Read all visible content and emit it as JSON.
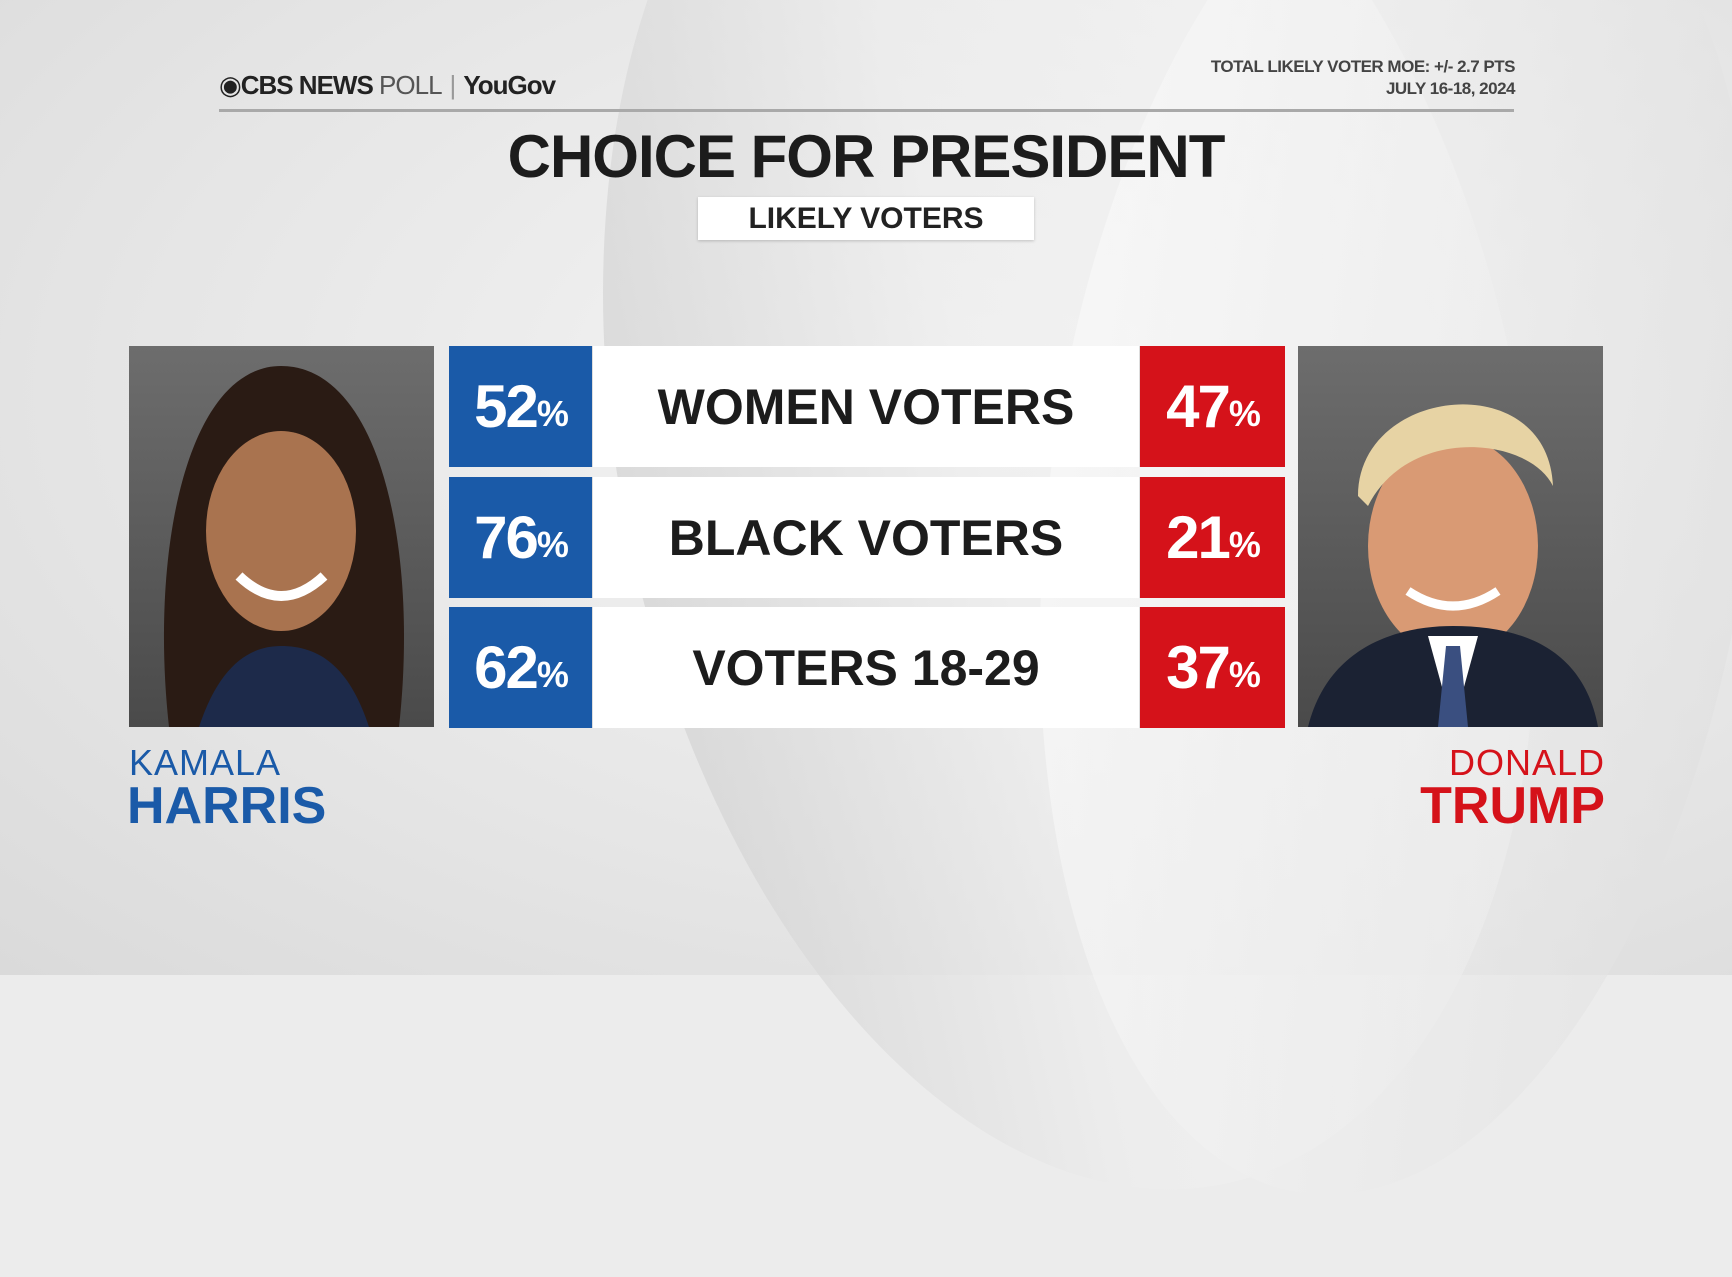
{
  "header": {
    "brand": "CBS NEWS",
    "poll": "POLL",
    "partner": "YouGov",
    "moe": "TOTAL LIKELY VOTER MOE: +/- 2.7 PTS",
    "dates": "JULY 16-18, 2024"
  },
  "title": "CHOICE FOR PRESIDENT",
  "subtitle": "LIKELY VOTERS",
  "candidates": {
    "left": {
      "first": "KAMALA",
      "last": "HARRIS",
      "color": "#1a5aa8"
    },
    "right": {
      "first": "DONALD",
      "last": "TRUMP",
      "color": "#d5121a"
    }
  },
  "chart_data": {
    "type": "table",
    "title": "CHOICE FOR PRESIDENT",
    "subtitle": "LIKELY VOTERS",
    "categories": [
      "WOMEN VOTERS",
      "BLACK VOTERS",
      "VOTERS 18-29"
    ],
    "series": [
      {
        "name": "Kamala Harris",
        "values": [
          52,
          76,
          62
        ]
      },
      {
        "name": "Donald Trump",
        "values": [
          47,
          21,
          37
        ]
      }
    ],
    "unit": "%"
  }
}
